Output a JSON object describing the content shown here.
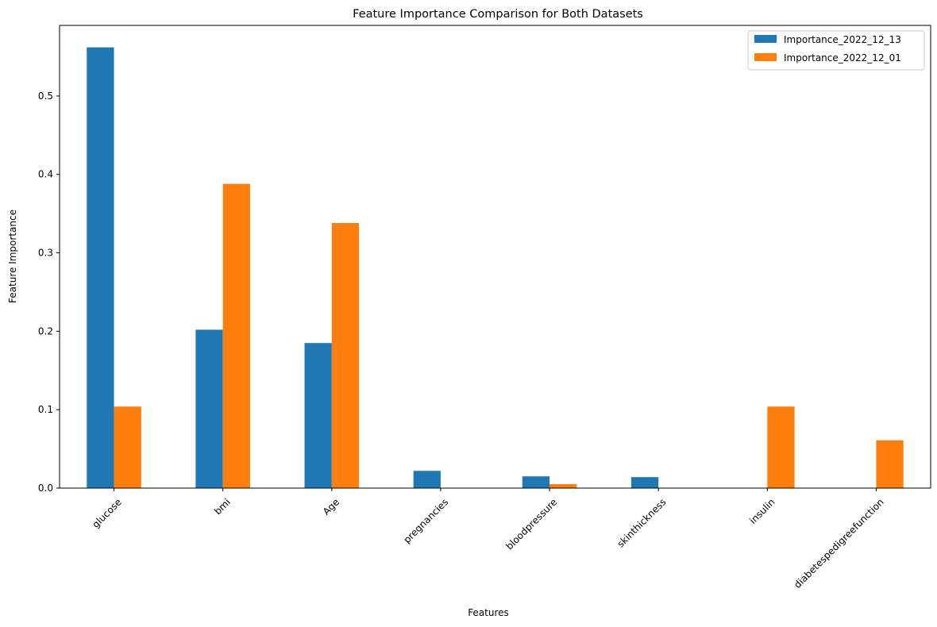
{
  "chart_data": {
    "type": "bar",
    "title": "Feature Importance Comparison for Both Datasets",
    "xlabel": "Features",
    "ylabel": "Feature Importance",
    "categories": [
      "glucose",
      "bmi",
      "Age",
      "pregnancies",
      "bloodpressure",
      "skinthickness",
      "insulin",
      "diabetespedigreefunction"
    ],
    "series": [
      {
        "name": "Importance_2022_12_13",
        "color": "#1f77b4",
        "values": [
          0.562,
          0.202,
          0.185,
          0.022,
          0.015,
          0.014,
          0.0,
          0.0
        ]
      },
      {
        "name": "Importance_2022_12_01",
        "color": "#ff7f0e",
        "values": [
          0.104,
          0.388,
          0.338,
          0.0,
          0.005,
          0.0,
          0.104,
          0.061
        ]
      }
    ],
    "ylim": [
      0,
      0.59
    ],
    "yticks": [
      0.0,
      0.1,
      0.2,
      0.3,
      0.4,
      0.5
    ],
    "ytick_labels": [
      "0.0",
      "0.1",
      "0.2",
      "0.3",
      "0.4",
      "0.5"
    ],
    "grid": false,
    "legend_position": "top-right",
    "xtick_rotation": 45
  }
}
